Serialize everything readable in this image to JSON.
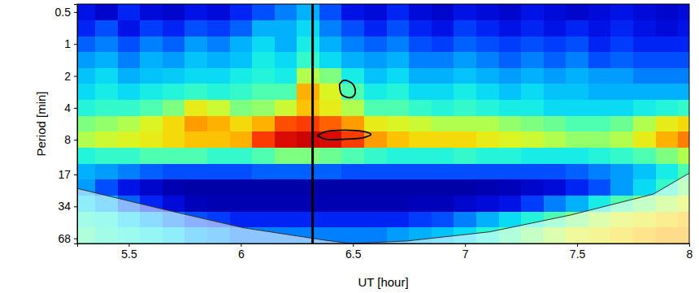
{
  "chart_data": {
    "type": "heatmap",
    "x_label": "UT [hour]",
    "y_label": "Period [min]",
    "xlim": [
      5.27,
      8.0
    ],
    "ylim": [
      0.42,
      76
    ],
    "xticks": [
      5.5,
      6,
      6.5,
      7,
      7.5,
      8
    ],
    "yticks": [
      0.5,
      1,
      2,
      4,
      8,
      17,
      34,
      68
    ],
    "log": "y",
    "heatmap": {
      "x": [
        5.3,
        5.4,
        5.5,
        5.6,
        5.7,
        5.8,
        5.9,
        6.0,
        6.1,
        6.2,
        6.3,
        6.4,
        6.5,
        6.6,
        6.7,
        6.8,
        6.9,
        7.0,
        7.1,
        7.2,
        7.3,
        7.4,
        7.5,
        7.6,
        7.7,
        7.8,
        7.9,
        8.0
      ],
      "y": [
        0.5,
        0.71,
        1,
        1.41,
        2,
        2.83,
        4,
        5.66,
        8,
        11.3,
        16,
        22.6,
        32,
        45,
        64
      ],
      "zlim": [
        0,
        1
      ],
      "z": [
        [
          0.12,
          0.08,
          0.15,
          0.1,
          0.08,
          0.12,
          0.1,
          0.15,
          0.2,
          0.25,
          0.3,
          0.2,
          0.12,
          0.1,
          0.15,
          0.1,
          0.08,
          0.12,
          0.1,
          0.08,
          0.12,
          0.1,
          0.08,
          0.1,
          0.12,
          0.1,
          0.08,
          0.1
        ],
        [
          0.15,
          0.2,
          0.12,
          0.18,
          0.15,
          0.2,
          0.18,
          0.22,
          0.3,
          0.3,
          0.35,
          0.25,
          0.2,
          0.15,
          0.2,
          0.15,
          0.12,
          0.18,
          0.15,
          0.12,
          0.15,
          0.12,
          0.15,
          0.12,
          0.15,
          0.12,
          0.1,
          0.12
        ],
        [
          0.22,
          0.25,
          0.2,
          0.25,
          0.22,
          0.28,
          0.25,
          0.3,
          0.35,
          0.3,
          0.38,
          0.3,
          0.25,
          0.22,
          0.25,
          0.2,
          0.18,
          0.22,
          0.2,
          0.18,
          0.2,
          0.18,
          0.2,
          0.15,
          0.18,
          0.15,
          0.15,
          0.15
        ],
        [
          0.28,
          0.3,
          0.25,
          0.3,
          0.28,
          0.32,
          0.3,
          0.32,
          0.38,
          0.35,
          0.42,
          0.35,
          0.3,
          0.28,
          0.3,
          0.25,
          0.25,
          0.28,
          0.25,
          0.22,
          0.25,
          0.22,
          0.25,
          0.2,
          0.22,
          0.2,
          0.2,
          0.2
        ],
        [
          0.32,
          0.35,
          0.3,
          0.32,
          0.33,
          0.35,
          0.35,
          0.38,
          0.4,
          0.38,
          0.55,
          0.5,
          0.38,
          0.32,
          0.35,
          0.3,
          0.3,
          0.32,
          0.3,
          0.28,
          0.3,
          0.28,
          0.3,
          0.28,
          0.28,
          0.25,
          0.25,
          0.25
        ],
        [
          0.35,
          0.38,
          0.35,
          0.38,
          0.4,
          0.42,
          0.4,
          0.42,
          0.45,
          0.45,
          0.7,
          0.6,
          0.45,
          0.38,
          0.4,
          0.35,
          0.35,
          0.38,
          0.35,
          0.32,
          0.35,
          0.32,
          0.32,
          0.3,
          0.3,
          0.3,
          0.3,
          0.3
        ],
        [
          0.4,
          0.42,
          0.42,
          0.45,
          0.5,
          0.62,
          0.58,
          0.5,
          0.52,
          0.58,
          0.68,
          0.62,
          0.55,
          0.45,
          0.45,
          0.42,
          0.4,
          0.42,
          0.4,
          0.38,
          0.38,
          0.35,
          0.35,
          0.35,
          0.35,
          0.38,
          0.4,
          0.42
        ],
        [
          0.5,
          0.52,
          0.55,
          0.6,
          0.65,
          0.72,
          0.7,
          0.65,
          0.7,
          0.8,
          0.82,
          0.78,
          0.72,
          0.62,
          0.6,
          0.58,
          0.55,
          0.55,
          0.55,
          0.52,
          0.5,
          0.48,
          0.45,
          0.45,
          0.48,
          0.55,
          0.62,
          0.65
        ],
        [
          0.55,
          0.58,
          0.6,
          0.62,
          0.65,
          0.68,
          0.68,
          0.7,
          0.82,
          0.9,
          0.92,
          0.9,
          0.82,
          0.72,
          0.68,
          0.65,
          0.65,
          0.65,
          0.62,
          0.6,
          0.58,
          0.55,
          0.52,
          0.52,
          0.55,
          0.62,
          0.7,
          0.75
        ],
        [
          0.4,
          0.42,
          0.42,
          0.45,
          0.45,
          0.45,
          0.42,
          0.42,
          0.45,
          0.5,
          0.5,
          0.48,
          0.45,
          0.42,
          0.4,
          0.4,
          0.4,
          0.42,
          0.4,
          0.4,
          0.38,
          0.38,
          0.38,
          0.4,
          0.42,
          0.45,
          0.5,
          0.55
        ],
        [
          0.3,
          0.28,
          0.25,
          0.22,
          0.2,
          0.2,
          0.2,
          0.2,
          0.22,
          0.22,
          0.22,
          0.22,
          0.2,
          0.2,
          0.2,
          0.2,
          0.2,
          0.2,
          0.2,
          0.2,
          0.2,
          0.2,
          0.22,
          0.25,
          0.28,
          0.32,
          0.38,
          0.45
        ],
        [
          0.28,
          0.2,
          0.12,
          0.08,
          0.05,
          0.04,
          0.04,
          0.04,
          0.04,
          0.04,
          0.04,
          0.04,
          0.04,
          0.04,
          0.04,
          0.04,
          0.04,
          0.04,
          0.05,
          0.06,
          0.08,
          0.1,
          0.15,
          0.2,
          0.28,
          0.35,
          0.42,
          0.5
        ],
        [
          0.35,
          0.3,
          0.22,
          0.15,
          0.1,
          0.06,
          0.05,
          0.05,
          0.05,
          0.05,
          0.05,
          0.05,
          0.05,
          0.05,
          0.05,
          0.06,
          0.06,
          0.08,
          0.1,
          0.12,
          0.18,
          0.25,
          0.3,
          0.38,
          0.45,
          0.5,
          0.55,
          0.6
        ],
        [
          0.42,
          0.4,
          0.35,
          0.3,
          0.25,
          0.2,
          0.18,
          0.15,
          0.15,
          0.15,
          0.15,
          0.15,
          0.15,
          0.15,
          0.15,
          0.18,
          0.2,
          0.25,
          0.3,
          0.35,
          0.4,
          0.45,
          0.5,
          0.55,
          0.6,
          0.62,
          0.65,
          0.68
        ],
        [
          0.45,
          0.42,
          0.4,
          0.38,
          0.35,
          0.3,
          0.28,
          0.25,
          0.25,
          0.25,
          0.25,
          0.25,
          0.25,
          0.25,
          0.28,
          0.3,
          0.32,
          0.35,
          0.4,
          0.45,
          0.5,
          0.55,
          0.6,
          0.62,
          0.65,
          0.68,
          0.7,
          0.7
        ]
      ]
    },
    "cone": {
      "x": [
        5.27,
        5.65,
        6.01,
        6.38,
        6.49,
        6.74,
        7.11,
        7.47,
        7.84,
        8.0
      ],
      "y": [
        23,
        36,
        54,
        71,
        76,
        72,
        59,
        41,
        26,
        16.5
      ]
    },
    "contours": [
      {
        "x": [
          6.44,
          6.46,
          6.5,
          6.51,
          6.49,
          6.45,
          6.44
        ],
        "y": [
          2.4,
          2.2,
          2.4,
          2.9,
          3.2,
          3.0,
          2.4
        ]
      },
      {
        "x": [
          6.34,
          6.38,
          6.46,
          6.55,
          6.58,
          6.55,
          6.46,
          6.38,
          6.34
        ],
        "y": [
          7.3,
          6.7,
          6.5,
          6.7,
          7.1,
          7.6,
          7.9,
          7.9,
          7.3
        ]
      }
    ],
    "event_line": {
      "x": 6.32
    }
  }
}
